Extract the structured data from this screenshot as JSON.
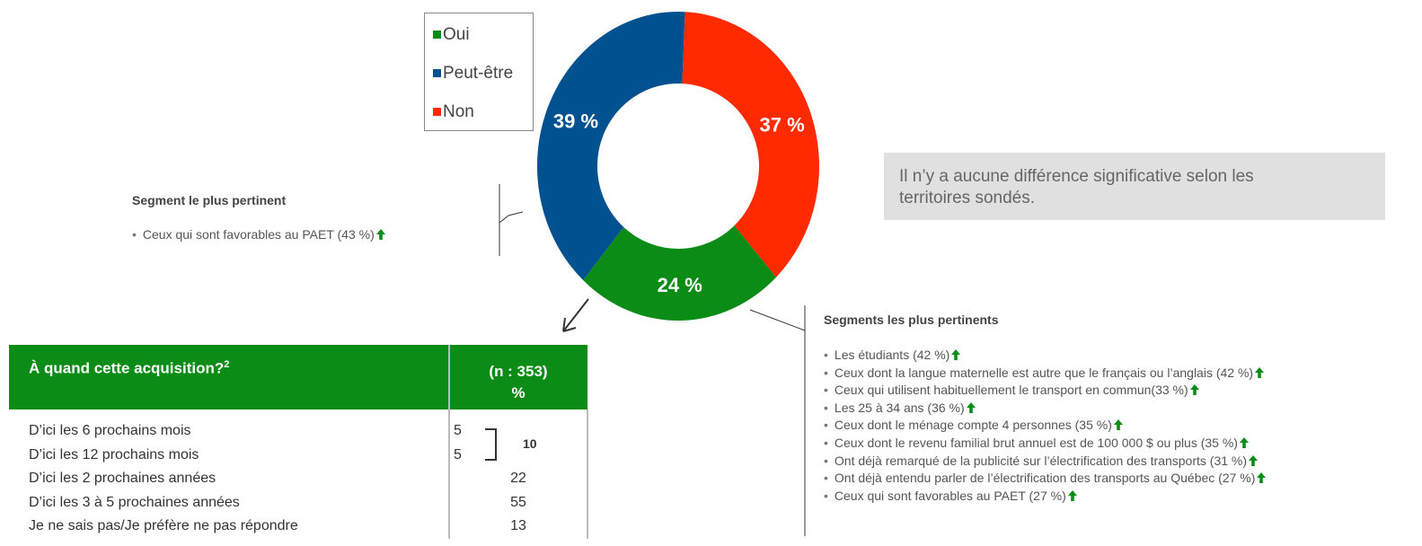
{
  "chart_data": {
    "type": "pie",
    "donut": true,
    "categories": [
      "Oui",
      "Peut-être",
      "Non"
    ],
    "values": [
      24,
      39,
      37
    ],
    "value_labels": [
      "24 %",
      "39 %",
      "37 %"
    ],
    "colors": [
      "#0b8c17",
      "#00518f",
      "#ff2a00"
    ],
    "legend": true
  },
  "segment_left": {
    "title": "Segment le plus pertinent",
    "items": [
      "Ceux qui sont favorables au PAET (43 %)"
    ]
  },
  "note": "Il n’y a aucune différence significative selon les territoires sondés.",
  "table": {
    "title": "À quand cette acquisition?",
    "title_sup": "2",
    "column_header": [
      "(n : 353)",
      "%"
    ],
    "rows": [
      [
        "D’ici les 6 prochains mois",
        5
      ],
      [
        "D’ici les 12 prochains mois",
        5
      ],
      [
        "D’ici les 2 prochaines années",
        22
      ],
      [
        "D’ici les 3 à 5 prochaines années",
        55
      ],
      [
        "Je ne sais pas/Je préfère ne pas répondre",
        13
      ]
    ],
    "subtotal": 10
  },
  "segments_right": {
    "title": "Segments les plus pertinents",
    "items": [
      "Les étudiants (42 %)",
      "Ceux dont la langue maternelle est autre que le français ou l’anglais (42 %)",
      "Ceux qui utilisent habituellement le transport en commun(33 %)",
      "Les 25 à 34 ans (36 %)",
      "Ceux dont le ménage compte 4 personnes (35 %)",
      "Ceux dont le revenu familial brut annuel est de 100 000 $ ou plus (35 %)",
      "Ont déjà remarqué de la publicité sur l’électrification des transports (31 %)",
      "Ont déjà entendu parler de l’électrification des transports au Québec (27 %)",
      "Ceux qui sont favorables au PAET (27 %)"
    ]
  }
}
